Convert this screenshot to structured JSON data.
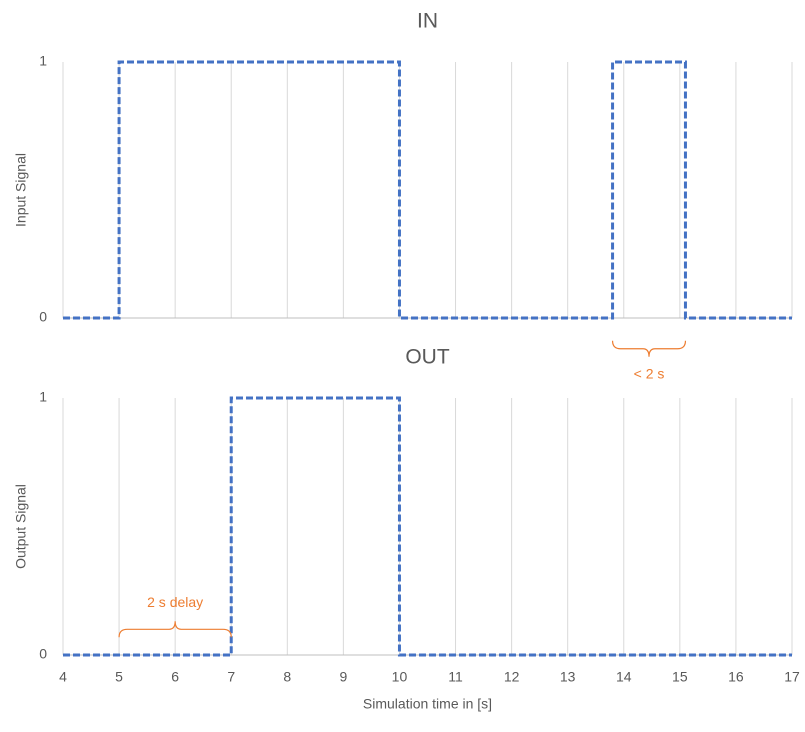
{
  "chart_data": [
    {
      "type": "line",
      "title": "IN",
      "y_label": "Input Signal",
      "xlim": [
        4,
        17
      ],
      "xticks": [
        4,
        5,
        6,
        7,
        8,
        9,
        10,
        11,
        12,
        13,
        14,
        15,
        16,
        17
      ],
      "xtick_labels": false,
      "ylim": [
        0,
        1
      ],
      "yticks": [
        0,
        1
      ],
      "grid": true,
      "series": [
        {
          "color": "#4472c4",
          "dashed": true,
          "x": [
            4,
            5,
            5,
            10,
            10,
            13.8,
            13.8,
            15.1,
            15.1,
            17
          ],
          "values": [
            0,
            0,
            1,
            1,
            0,
            0,
            1,
            1,
            0,
            0
          ]
        }
      ],
      "annotations": [
        {
          "text": "< 2 s",
          "x0": 13.8,
          "x1": 15.1,
          "y": -0.12,
          "side": "below",
          "color": "#ed7d31"
        }
      ]
    },
    {
      "type": "line",
      "title": "OUT",
      "y_label": "Output Signal",
      "x_label": "Simulation time in [s]",
      "xlim": [
        4,
        17
      ],
      "xticks": [
        4,
        5,
        6,
        7,
        8,
        9,
        10,
        11,
        12,
        13,
        14,
        15,
        16,
        17
      ],
      "xtick_labels": true,
      "ylim": [
        0,
        1
      ],
      "yticks": [
        0,
        1
      ],
      "grid": true,
      "series": [
        {
          "color": "#4472c4",
          "dashed": true,
          "x": [
            4,
            7,
            7,
            10,
            10,
            17
          ],
          "values": [
            0,
            0,
            1,
            1,
            0,
            0
          ]
        }
      ],
      "annotations": [
        {
          "text": "2 s delay",
          "x0": 5,
          "x1": 7,
          "y": 0.1,
          "side": "above",
          "color": "#ed7d31"
        }
      ]
    }
  ]
}
